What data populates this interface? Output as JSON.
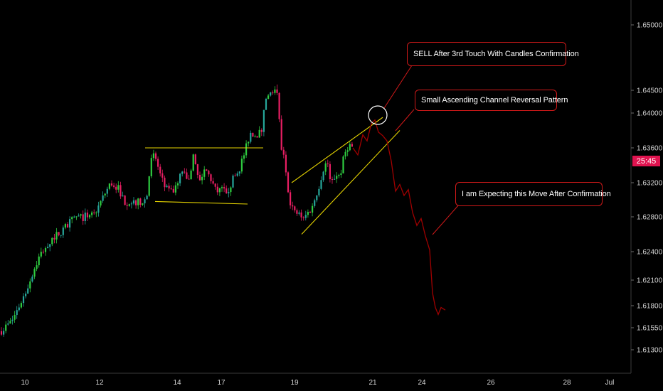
{
  "chart_data": {
    "type": "candlestick",
    "y_ticks": [
      "1.65000",
      "1.64500",
      "1.64000",
      "1.63600",
      "1.63200",
      "1.62800",
      "1.62400",
      "1.62100",
      "1.61800",
      "1.61550",
      "1.61300"
    ],
    "x_ticks": [
      "10",
      "12",
      "14",
      "17",
      "19",
      "21",
      "24",
      "26",
      "28",
      "Jul"
    ],
    "current_price_label": "25:45",
    "colors": {
      "up": "#26a69a",
      "up_bright": "#2ecc40",
      "down": "#e91e63",
      "trend": "#e6d400",
      "projection": "#a00000",
      "annotation_border": "#d01919"
    },
    "path_points": [
      [
        1,
        1.6151
      ],
      [
        16,
        1.6162
      ],
      [
        26,
        1.6178
      ],
      [
        36,
        1.6196
      ],
      [
        46,
        1.6218
      ],
      [
        56,
        1.6236
      ],
      [
        66,
        1.6248
      ],
      [
        76,
        1.6257
      ],
      [
        86,
        1.6263
      ],
      [
        96,
        1.6272
      ],
      [
        106,
        1.628
      ],
      [
        116,
        1.6279
      ],
      [
        126,
        1.6283
      ],
      [
        136,
        1.6288
      ],
      [
        146,
        1.6305
      ],
      [
        156,
        1.632
      ],
      [
        166,
        1.6314
      ],
      [
        176,
        1.6297
      ],
      [
        186,
        1.6298
      ],
      [
        196,
        1.6297
      ],
      [
        206,
        1.6301
      ],
      [
        212,
        1.6345
      ],
      [
        218,
        1.6352
      ],
      [
        224,
        1.6332
      ],
      [
        232,
        1.6314
      ],
      [
        240,
        1.6308
      ],
      [
        248,
        1.6314
      ],
      [
        256,
        1.6334
      ],
      [
        264,
        1.632
      ],
      [
        272,
        1.635
      ],
      [
        280,
        1.632
      ],
      [
        288,
        1.6336
      ],
      [
        296,
        1.6325
      ],
      [
        304,
        1.6309
      ],
      [
        312,
        1.6312
      ],
      [
        320,
        1.631
      ],
      [
        328,
        1.6325
      ],
      [
        336,
        1.6335
      ],
      [
        344,
        1.6355
      ],
      [
        352,
        1.6378
      ],
      [
        360,
        1.6374
      ],
      [
        368,
        1.638
      ],
      [
        374,
        1.643
      ],
      [
        380,
        1.6442
      ],
      [
        386,
        1.645
      ],
      [
        390,
        1.644
      ],
      [
        394,
        1.6365
      ],
      [
        400,
        1.6345
      ],
      [
        404,
        1.6318
      ],
      [
        408,
        1.6298
      ],
      [
        414,
        1.6285
      ],
      [
        420,
        1.6283
      ],
      [
        428,
        1.628
      ],
      [
        436,
        1.6288
      ],
      [
        442,
        1.63
      ],
      [
        448,
        1.6315
      ],
      [
        454,
        1.6335
      ],
      [
        460,
        1.6345
      ],
      [
        466,
        1.6318
      ],
      [
        472,
        1.633
      ],
      [
        478,
        1.6328
      ],
      [
        484,
        1.6352
      ],
      [
        490,
        1.6364
      ],
      [
        496,
        1.636
      ]
    ],
    "projection_points": [
      [
        496,
        1.636
      ],
      [
        503,
        1.6352
      ],
      [
        510,
        1.6375
      ],
      [
        516,
        1.6368
      ],
      [
        522,
        1.6388
      ],
      [
        527,
        1.6392
      ],
      [
        532,
        1.6378
      ],
      [
        538,
        1.6374
      ],
      [
        544,
        1.6368
      ],
      [
        550,
        1.6345
      ],
      [
        556,
        1.631
      ],
      [
        562,
        1.6318
      ],
      [
        568,
        1.6305
      ],
      [
        574,
        1.6312
      ],
      [
        580,
        1.6285
      ],
      [
        586,
        1.627
      ],
      [
        592,
        1.6278
      ],
      [
        598,
        1.6258
      ],
      [
        604,
        1.6242
      ],
      [
        608,
        1.6195
      ],
      [
        612,
        1.6178
      ],
      [
        616,
        1.617
      ],
      [
        620,
        1.6178
      ],
      [
        626,
        1.6175
      ]
    ],
    "annotations": [
      {
        "text": "SELL After 3rd Touch With Candles Confirmation"
      },
      {
        "text": "Small Ascending Channel Reversal Pattern"
      },
      {
        "text": "I am Expecting this Move After Confirmation"
      }
    ],
    "trend_lines": [
      {
        "from": [
          204,
          1.636
        ],
        "to": [
          370,
          1.636
        ]
      },
      {
        "from": [
          218,
          1.6298
        ],
        "to": [
          348,
          1.6295
        ]
      },
      {
        "from": [
          410,
          1.632
        ],
        "to": [
          538,
          1.6395
        ]
      },
      {
        "from": [
          424,
          1.626
        ],
        "to": [
          562,
          1.638
        ]
      }
    ]
  }
}
